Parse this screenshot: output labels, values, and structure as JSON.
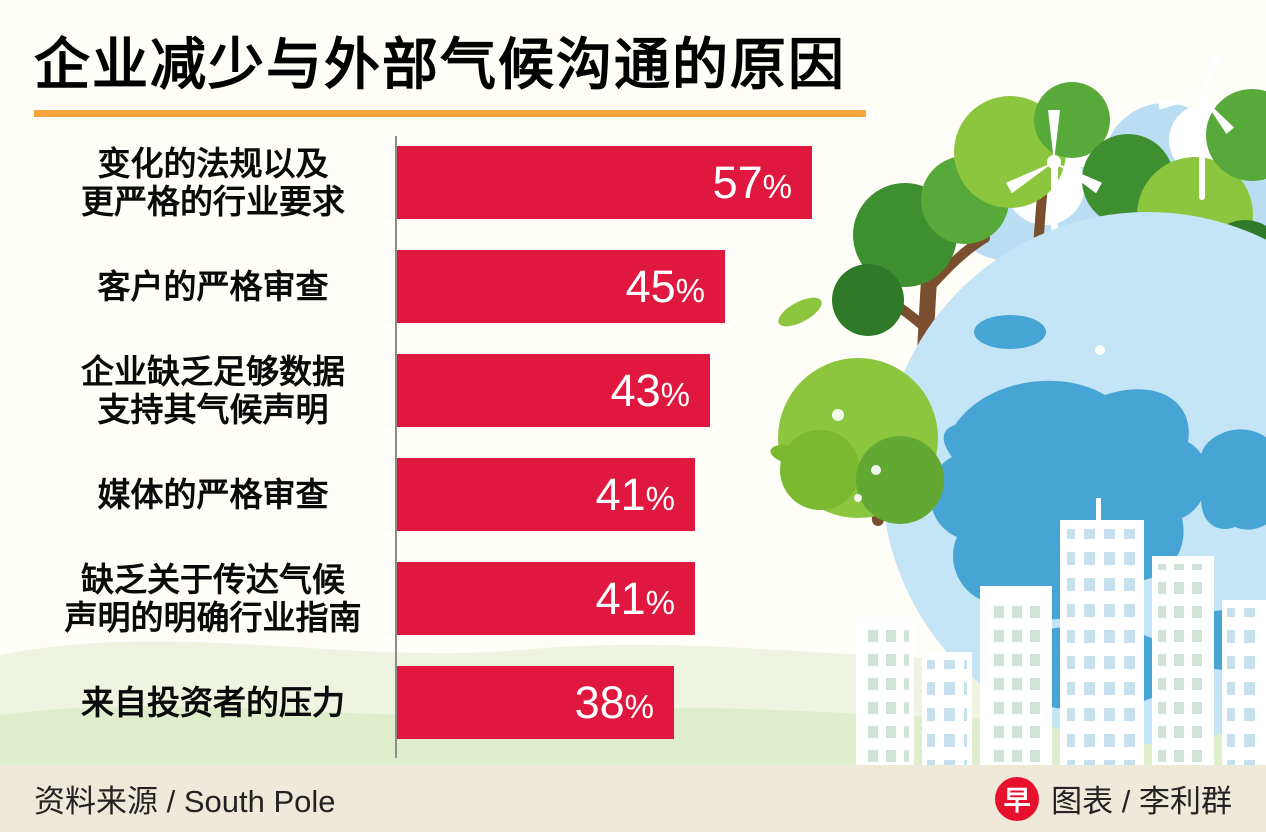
{
  "page": {
    "title": "企业减少与外部气候沟通的原因",
    "footer": {
      "source": "资料来源 / South Pole",
      "credit": "图表 / 李利群",
      "logo_glyph": "早"
    }
  },
  "colors": {
    "bar": "#e0173f",
    "title_underline": "#f6a63b",
    "logo_red": "#e8112d",
    "value_text": "#ffffff"
  },
  "chart_data": {
    "type": "bar",
    "orientation": "horizontal",
    "title": "企业减少与外部气候沟通的原因",
    "unit": "%",
    "categories": [
      "变化的法规以及\n更严格的行业要求",
      "客户的严格审查",
      "企业缺乏足够数据\n支持其气候声明",
      "媒体的严格审查",
      "缺乏关于传达气候\n声明的明确行业指南",
      "来自投资者的压力"
    ],
    "values": [
      57,
      45,
      43,
      41,
      41,
      38
    ],
    "xlim": [
      0,
      60
    ],
    "legend": null,
    "grid": false,
    "source": "South Pole"
  }
}
